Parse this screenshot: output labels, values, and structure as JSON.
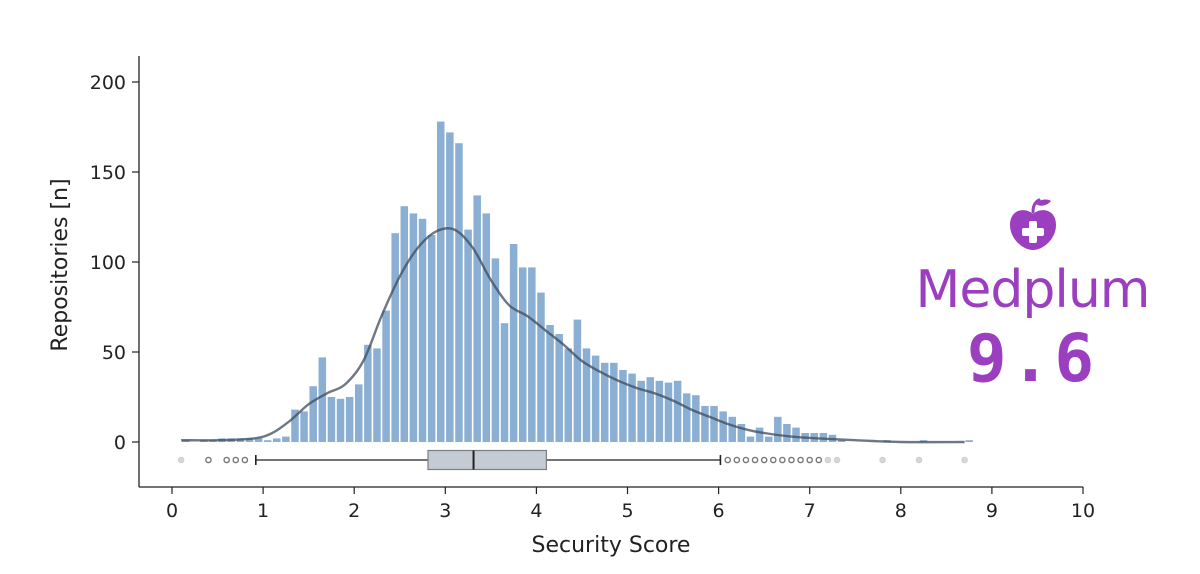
{
  "chart_data": {
    "type": "bar",
    "subtype": "histogram_with_kde_and_boxplot",
    "title": "",
    "xlabel": "Security Score",
    "ylabel": "Repositories [n]",
    "xlim": [
      0,
      10
    ],
    "ylim": [
      -25,
      215
    ],
    "xticks": [
      "0",
      "1",
      "2",
      "3",
      "4",
      "5",
      "6",
      "7",
      "8",
      "9",
      "10"
    ],
    "yticks": [
      "0",
      "50",
      "100",
      "150",
      "200"
    ],
    "grid": false,
    "bin_width": 0.1,
    "bins_start": [
      0.1,
      0.3,
      0.4,
      0.5,
      0.6,
      0.7,
      0.8,
      0.9,
      1.0,
      1.1,
      1.2,
      1.3,
      1.4,
      1.5,
      1.6,
      1.7,
      1.8,
      1.9,
      2.0,
      2.1,
      2.2,
      2.3,
      2.4,
      2.5,
      2.6,
      2.7,
      2.8,
      2.9,
      3.0,
      3.1,
      3.2,
      3.3,
      3.4,
      3.5,
      3.6,
      3.7,
      3.8,
      3.9,
      4.0,
      4.1,
      4.2,
      4.3,
      4.4,
      4.5,
      4.6,
      4.7,
      4.8,
      4.9,
      5.0,
      5.1,
      5.2,
      5.3,
      5.4,
      5.5,
      5.6,
      5.7,
      5.8,
      5.9,
      6.0,
      6.1,
      6.2,
      6.3,
      6.4,
      6.5,
      6.6,
      6.7,
      6.8,
      6.9,
      7.0,
      7.1,
      7.2,
      7.3,
      7.8,
      8.2,
      8.7
    ],
    "values": [
      1,
      1,
      1,
      2,
      2,
      2,
      2,
      2,
      1,
      2,
      3,
      18,
      17,
      31,
      47,
      25,
      24,
      25,
      32,
      54,
      52,
      73,
      116,
      131,
      127,
      124,
      115,
      178,
      172,
      166,
      118,
      137,
      127,
      102,
      66,
      110,
      97,
      97,
      83,
      65,
      60,
      52,
      68,
      52,
      48,
      44,
      44,
      40,
      38,
      34,
      36,
      34,
      33,
      34,
      27,
      26,
      20,
      20,
      17,
      14,
      10,
      3,
      8,
      3,
      14,
      10,
      8,
      5,
      5,
      5,
      4,
      1,
      1,
      1,
      1
    ],
    "kde": {
      "x": [
        0.1,
        0.5,
        0.9,
        1.1,
        1.3,
        1.5,
        1.7,
        1.9,
        2.1,
        2.3,
        2.5,
        2.7,
        2.9,
        3.1,
        3.3,
        3.5,
        3.7,
        3.9,
        4.1,
        4.3,
        4.5,
        4.7,
        4.9,
        5.1,
        5.3,
        5.5,
        5.7,
        5.9,
        6.1,
        6.3,
        6.5,
        6.8,
        7.1,
        7.5,
        8.0,
        8.7
      ],
      "y": [
        1,
        1,
        2,
        5,
        12,
        21,
        27,
        32,
        45,
        70,
        92,
        108,
        117,
        118,
        108,
        90,
        76,
        70,
        62,
        54,
        45,
        39,
        34,
        30,
        27,
        23,
        18,
        14,
        10,
        7,
        5,
        3,
        2,
        1,
        0,
        0
      ]
    },
    "boxplot": {
      "whisker_low": 0.92,
      "q1": 2.81,
      "median": 3.31,
      "q3": 4.11,
      "whisker_high": 6.02,
      "outliers": [
        0.1,
        0.4,
        0.6,
        0.7,
        0.8,
        6.1,
        6.2,
        6.3,
        6.4,
        6.5,
        6.6,
        6.7,
        6.8,
        6.9,
        7.0,
        7.1,
        7.2,
        7.3,
        7.8,
        8.2,
        8.7
      ]
    }
  },
  "colors": {
    "bar": "#8bafd2",
    "kde": "#3d4b5c",
    "box_fill": "#c4cbd2",
    "box_edge": "#7a7f85",
    "brand": "#9b3fc0"
  },
  "brand": {
    "icon": "apple-medical-cross-icon",
    "name": "Medplum",
    "score": "9.6"
  }
}
